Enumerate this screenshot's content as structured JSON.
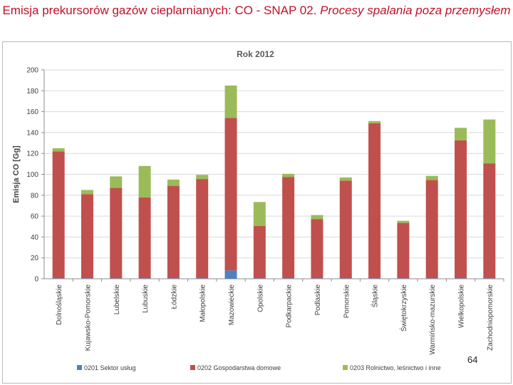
{
  "slide": {
    "title_part1": "Emisja prekursorów gazów cieplarnianych:  CO - SNAP 02. ",
    "title_part2": "Procesy spalania poza przemysłem",
    "page_number": "64"
  },
  "chart_data": {
    "type": "bar",
    "stacked": true,
    "title": "Rok 2012",
    "xlabel": "",
    "ylabel": "Emisja CO [Gg]",
    "ylim": [
      0,
      200
    ],
    "yticks": [
      0,
      20,
      40,
      60,
      80,
      100,
      120,
      140,
      160,
      180,
      200
    ],
    "grid": true,
    "legend_position": "bottom",
    "categories": [
      "Dolnośląskie",
      "Kujawsko-Pomorskie",
      "Lubelskie",
      "Lubuskie",
      "Łódzkie",
      "Małopolskie",
      "Mazowieckie",
      "Opolskie",
      "Podkarpackie",
      "Podlaskie",
      "Pomorskie",
      "Śląskie",
      "Świętokrzyskie",
      "Warmińsko-mazurskie",
      "Wielkopolskie",
      "Zachodniopomorskie"
    ],
    "series": [
      {
        "name": "0201 Sektor usług",
        "color": "#4f81bd",
        "values": [
          0.5,
          0.5,
          0.5,
          0.5,
          0.5,
          0.5,
          8,
          0.5,
          0.5,
          0.5,
          0.5,
          0.5,
          0.5,
          0.5,
          0.5,
          0.5
        ]
      },
      {
        "name": "0202  Gospodarstwa domowe",
        "color": "#c0504d",
        "values": [
          121.5,
          80.5,
          86.5,
          77.5,
          88.5,
          95,
          146,
          50,
          97,
          56.5,
          93.5,
          148.5,
          53,
          94,
          132,
          110
        ]
      },
      {
        "name": "0203  Rolnictwo, leśnictwo i inne",
        "color": "#9bbb59",
        "values": [
          3,
          4,
          11,
          30,
          6,
          4,
          31,
          23,
          3,
          4,
          3,
          2,
          2,
          4,
          12,
          42
        ]
      }
    ]
  }
}
